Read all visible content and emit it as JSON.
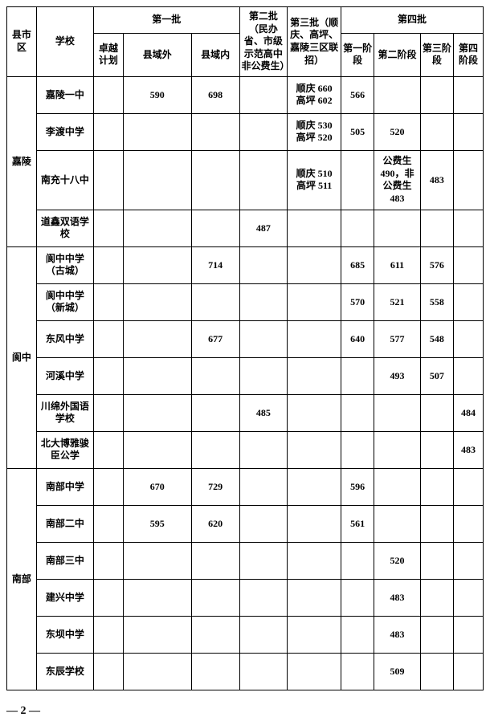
{
  "headers": {
    "district": "县市区",
    "school": "学校",
    "batch1": "第一批",
    "batch2": "第二批（民办省、市级示范高中非公费生）",
    "batch3": "第三批（顺庆、高坪、嘉陵三区联招）",
    "batch4": "第四批",
    "plan": "卓越计划",
    "outside": "县域外",
    "inside": "县域内",
    "phase1": "第一阶段",
    "phase2": "第二阶段",
    "phase3": "第三阶段",
    "phase4": "第四阶段"
  },
  "districts": [
    {
      "name": "嘉陵",
      "rows": [
        {
          "school": "嘉陵一中",
          "plan": "",
          "outside": "590",
          "inside": "698",
          "b2": "",
          "b3": "顺庆 660\n高坪 602",
          "p1": "566",
          "p2": "",
          "p3": "",
          "p4": ""
        },
        {
          "school": "李渡中学",
          "plan": "",
          "outside": "",
          "inside": "",
          "b2": "",
          "b3": "顺庆 530\n高坪 520",
          "p1": "505",
          "p2": "520",
          "p3": "",
          "p4": ""
        },
        {
          "school": "南充十八中",
          "plan": "",
          "outside": "",
          "inside": "",
          "b2": "",
          "b3": "顺庆 510\n高坪 511",
          "p1": "",
          "p2": "公费生490，非公费生483",
          "p3": "483",
          "p4": ""
        },
        {
          "school": "道鑫双语学校",
          "plan": "",
          "outside": "",
          "inside": "",
          "b2": "487",
          "b3": "",
          "p1": "",
          "p2": "",
          "p3": "",
          "p4": ""
        }
      ]
    },
    {
      "name": "阆中",
      "rows": [
        {
          "school": "阆中中学（古城）",
          "plan": "",
          "outside": "",
          "inside": "714",
          "b2": "",
          "b3": "",
          "p1": "685",
          "p2": "611",
          "p3": "576",
          "p4": ""
        },
        {
          "school": "阆中中学（新城）",
          "plan": "",
          "outside": "",
          "inside": "",
          "b2": "",
          "b3": "",
          "p1": "570",
          "p2": "521",
          "p3": "558",
          "p4": ""
        },
        {
          "school": "东风中学",
          "plan": "",
          "outside": "",
          "inside": "677",
          "b2": "",
          "b3": "",
          "p1": "640",
          "p2": "577",
          "p3": "548",
          "p4": ""
        },
        {
          "school": "河溪中学",
          "plan": "",
          "outside": "",
          "inside": "",
          "b2": "",
          "b3": "",
          "p1": "",
          "p2": "493",
          "p3": "507",
          "p4": ""
        },
        {
          "school": "川绵外国语学校",
          "plan": "",
          "outside": "",
          "inside": "",
          "b2": "485",
          "b3": "",
          "p1": "",
          "p2": "",
          "p3": "",
          "p4": "484"
        },
        {
          "school": "北大博雅骏臣公学",
          "plan": "",
          "outside": "",
          "inside": "",
          "b2": "",
          "b3": "",
          "p1": "",
          "p2": "",
          "p3": "",
          "p4": "483"
        }
      ]
    },
    {
      "name": "南部",
      "rows": [
        {
          "school": "南部中学",
          "plan": "",
          "outside": "670",
          "inside": "729",
          "b2": "",
          "b3": "",
          "p1": "596",
          "p2": "",
          "p3": "",
          "p4": ""
        },
        {
          "school": "南部二中",
          "plan": "",
          "outside": "595",
          "inside": "620",
          "b2": "",
          "b3": "",
          "p1": "561",
          "p2": "",
          "p3": "",
          "p4": ""
        },
        {
          "school": "南部三中",
          "plan": "",
          "outside": "",
          "inside": "",
          "b2": "",
          "b3": "",
          "p1": "",
          "p2": "520",
          "p3": "",
          "p4": ""
        },
        {
          "school": "建兴中学",
          "plan": "",
          "outside": "",
          "inside": "",
          "b2": "",
          "b3": "",
          "p1": "",
          "p2": "483",
          "p3": "",
          "p4": ""
        },
        {
          "school": "东坝中学",
          "plan": "",
          "outside": "",
          "inside": "",
          "b2": "",
          "b3": "",
          "p1": "",
          "p2": "483",
          "p3": "",
          "p4": ""
        },
        {
          "school": "东辰学校",
          "plan": "",
          "outside": "",
          "inside": "",
          "b2": "",
          "b3": "",
          "p1": "",
          "p2": "509",
          "p3": "",
          "p4": ""
        }
      ]
    }
  ],
  "page_number": "— 2 —"
}
